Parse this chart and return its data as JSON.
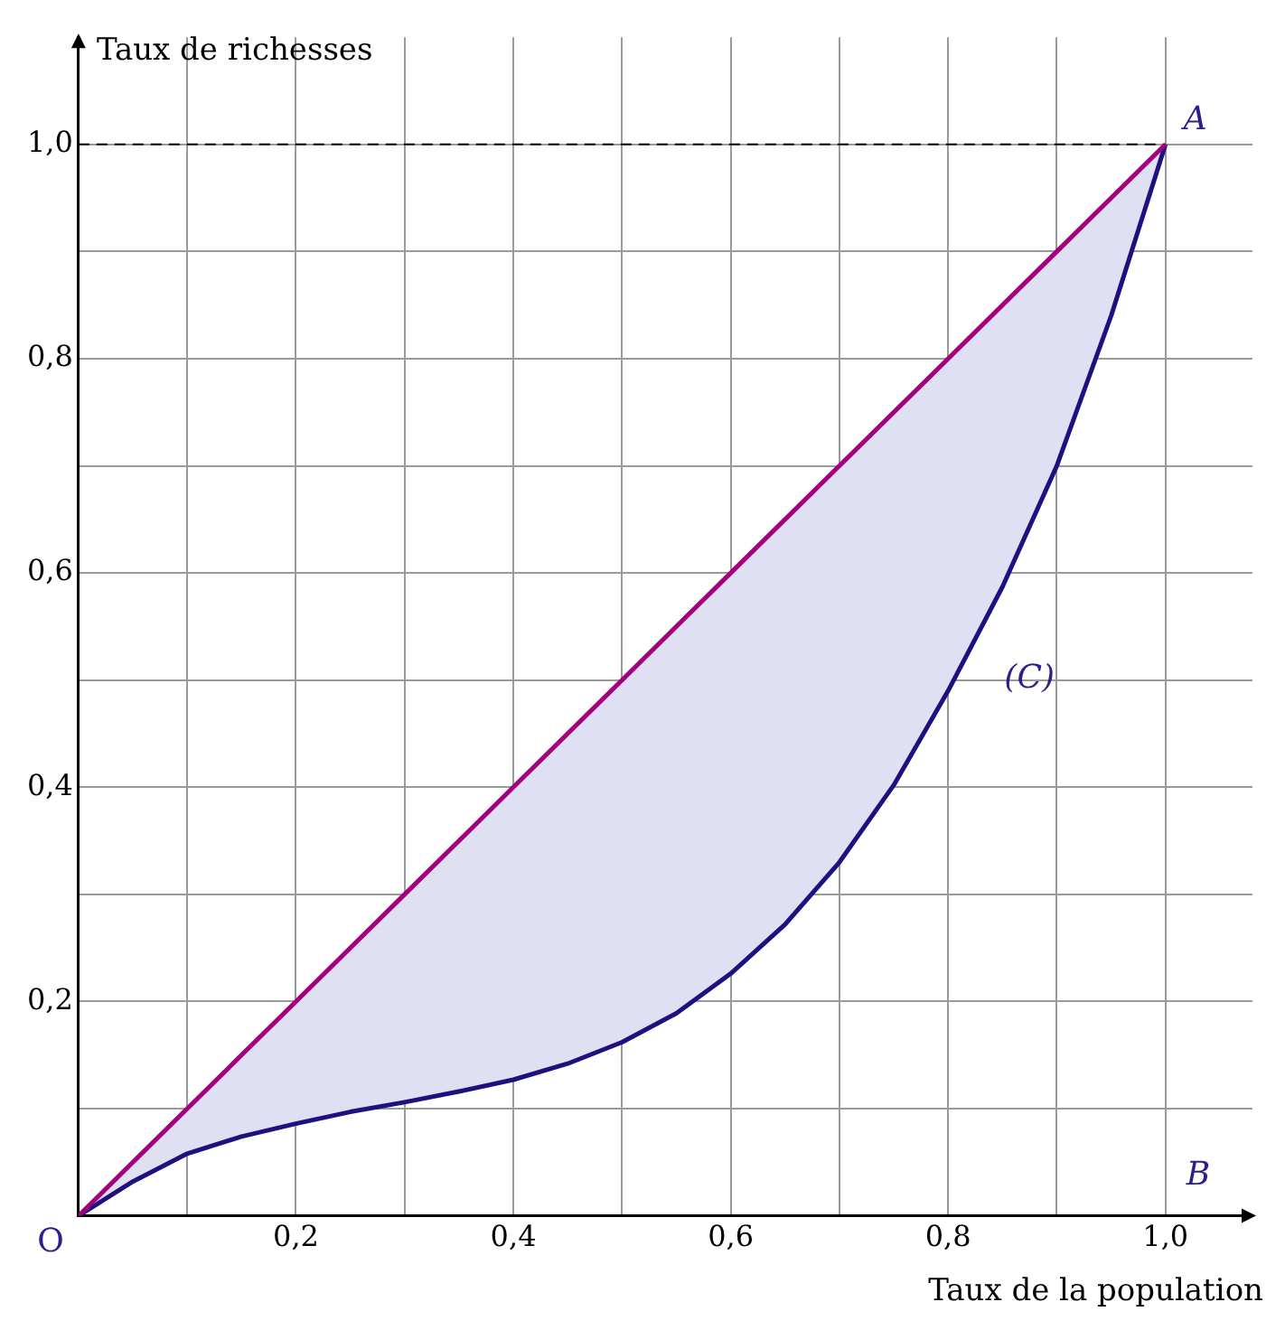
{
  "chart_data": {
    "type": "line",
    "xlabel": "Taux de la population",
    "ylabel": "Taux de richesses",
    "xlim": [
      0,
      1.08
    ],
    "ylim": [
      0,
      1.1
    ],
    "xticks": [
      {
        "value": 0.1,
        "label": null
      },
      {
        "value": 0.2,
        "label": "0,2"
      },
      {
        "value": 0.3,
        "label": null
      },
      {
        "value": 0.4,
        "label": "0,4"
      },
      {
        "value": 0.5,
        "label": null
      },
      {
        "value": 0.6,
        "label": "0,6"
      },
      {
        "value": 0.7,
        "label": null
      },
      {
        "value": 0.8,
        "label": "0,8"
      },
      {
        "value": 0.9,
        "label": null
      },
      {
        "value": 1,
        "label": "1,0"
      }
    ],
    "yticks": [
      {
        "value": 0.1,
        "label": null
      },
      {
        "value": 0.2,
        "label": "0,2"
      },
      {
        "value": 0.3,
        "label": null
      },
      {
        "value": 0.4,
        "label": "0,4"
      },
      {
        "value": 0.5,
        "label": null
      },
      {
        "value": 0.6,
        "label": "0,6"
      },
      {
        "value": 0.7,
        "label": null
      },
      {
        "value": 0.8,
        "label": "0,8"
      },
      {
        "value": 0.9,
        "label": null
      },
      {
        "value": 1,
        "label": "1,0"
      }
    ],
    "grid": true,
    "legend": false,
    "marker": "none",
    "series": [
      {
        "color": "#a3007d",
        "x": [
          0,
          0.1,
          0.2,
          0.3,
          0.4,
          0.5,
          0.6,
          0.7,
          0.8,
          0.9,
          1
        ],
        "values": [
          0,
          0.1,
          0.2,
          0.3,
          0.4,
          0.5,
          0.6,
          0.7,
          0.8,
          0.9,
          1
        ]
      },
      {
        "color": "#1f1080",
        "x": [
          0,
          0.05,
          0.1,
          0.15,
          0.2,
          0.25,
          0.3,
          0.35,
          0.4,
          0.45,
          0.5,
          0.55,
          0.6,
          0.65,
          0.7,
          0.75,
          0.8,
          0.85,
          0.9,
          0.95,
          1
        ],
        "values": [
          0,
          0.032,
          0.058,
          0.074,
          0.086,
          0.097,
          0.106,
          0.116,
          0.127,
          0.142,
          0.162,
          0.189,
          0.226,
          0.272,
          0.33,
          0.402,
          0.49,
          0.587,
          0.7,
          0.84,
          1
        ],
        "lower": [
          0,
          0.032,
          0.058,
          0.074,
          0.086,
          0.097,
          0.106,
          0.116,
          0.127,
          0.142,
          0.162,
          0.189,
          0.226,
          0.272,
          0.33,
          0.402,
          0.49,
          0.587,
          0.7,
          0.84,
          1
        ],
        "upper": [
          0,
          0.05,
          0.1,
          0.15,
          0.2,
          0.25,
          0.3,
          0.35,
          0.4,
          0.45,
          0.5,
          0.55,
          0.6,
          0.65,
          0.7,
          0.75,
          0.8,
          0.85,
          0.9,
          0.95,
          1
        ]
      }
    ],
    "ref_lines": [
      {
        "axis": "y",
        "value": 1,
        "color": "#000000",
        "line_style": "dashed"
      }
    ],
    "annotations": [
      {
        "text": "A",
        "x": 1,
        "y": 1
      },
      "B",
      "(C)",
      {
        "text": "O",
        "x": 0,
        "y": 0
      }
    ]
  }
}
